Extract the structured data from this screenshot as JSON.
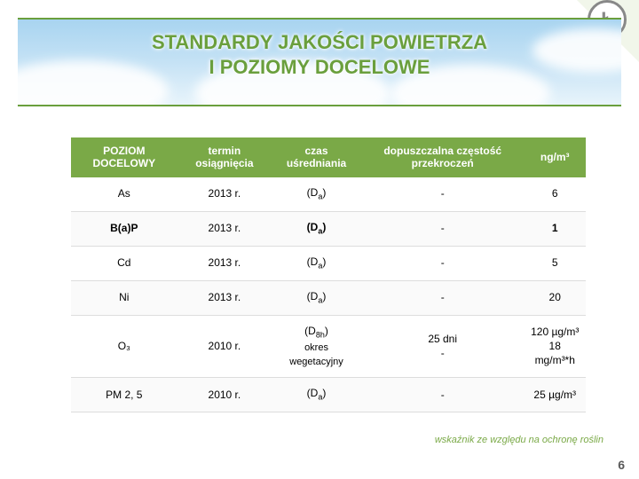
{
  "logo_letter": "Ł",
  "title": {
    "line1": "STANDARDY JAKOŚCI POWIETRZA",
    "line2": "I POZIOMY DOCELOWE"
  },
  "table": {
    "headers": {
      "c0": "POZIOM DOCELOWY",
      "c1": "termin osiągnięcia",
      "c2": "czas uśredniania",
      "c3": "dopuszczalna częstość przekroczeń",
      "c4": "ng/m³"
    },
    "rows": [
      {
        "level": "As",
        "term": "2013 r.",
        "avg_pre": "(D",
        "avg_sub": "a",
        "avg_post": ")",
        "second_line": "",
        "freq": "-",
        "val": "6",
        "bold": false
      },
      {
        "level": "B(a)P",
        "term": "2013 r.",
        "avg_pre": "(D",
        "avg_sub": "a",
        "avg_post": ")",
        "second_line": "",
        "freq": "-",
        "val": "1",
        "bold": true
      },
      {
        "level": "Cd",
        "term": "2013 r.",
        "avg_pre": "(D",
        "avg_sub": "a",
        "avg_post": ")",
        "second_line": "",
        "freq": "-",
        "val": "5",
        "bold": false
      },
      {
        "level": "Ni",
        "term": "2013 r.",
        "avg_pre": "(D",
        "avg_sub": "a",
        "avg_post": ")",
        "second_line": "",
        "freq": "-",
        "val": "20",
        "bold": false
      },
      {
        "level": "O₃",
        "term": "2010 r.",
        "avg_pre": "(D",
        "avg_sub": "8h",
        "avg_post": ")",
        "second_line": "okres wegetacyjny",
        "freq": "25 dni\n-",
        "val": "120 µg/m³\n18 mg/m³*h",
        "bold": false
      },
      {
        "level": "PM 2, 5",
        "term": "2010 r.",
        "avg_pre": "(D",
        "avg_sub": "a",
        "avg_post": ")",
        "second_line": "",
        "freq": "-",
        "val": "25 µg/m³",
        "bold": false
      }
    ]
  },
  "footnote": "wskaźnik ze względu na ochronę roślin",
  "pagenum": "6",
  "colors": {
    "header_bg": "#7aa947",
    "accent": "#6a9f3d",
    "text": "#333"
  }
}
